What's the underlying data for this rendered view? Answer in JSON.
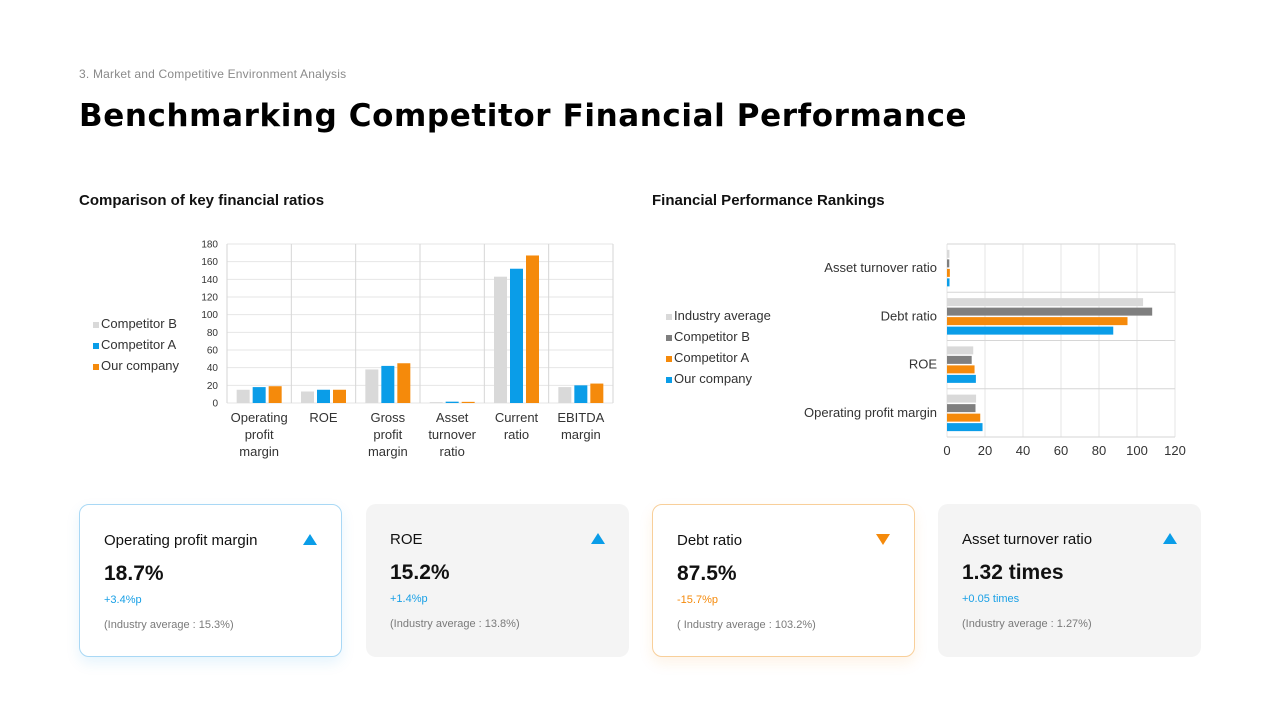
{
  "header": {
    "section": "3. Market and Competitive Environment Analysis",
    "title": "Benchmarking Competitor Financial Performance"
  },
  "colors": {
    "our_company": "#0a9de8",
    "competitor_a": "#f58a0b",
    "competitor_b": "#d9d9d9",
    "competitor_b_dark": "#7f7f7f",
    "industry_average": "#d9d9d9"
  },
  "chart_data": [
    {
      "type": "bar",
      "title": "Comparison of key financial ratios",
      "categories": [
        [
          "Operating",
          "profit",
          "margin"
        ],
        [
          "ROE"
        ],
        [
          "Gross",
          "profit",
          "margin"
        ],
        [
          "Asset",
          "turnover",
          "ratio"
        ],
        [
          "Current",
          "ratio"
        ],
        [
          "EBITDA",
          "margin"
        ]
      ],
      "series": [
        {
          "name": "Competitor B",
          "color": "#d9d9d9",
          "values": [
            15,
            13,
            38,
            1,
            143,
            18
          ]
        },
        {
          "name": "Competitor A",
          "color": "#0a9de8",
          "values": [
            18,
            15,
            42,
            1.5,
            152,
            20
          ]
        },
        {
          "name": "Our company",
          "color": "#f58a0b",
          "values": [
            19,
            15,
            45,
            1.3,
            167,
            22
          ]
        }
      ],
      "ylim": [
        0,
        180
      ],
      "yticks": [
        0,
        20,
        40,
        60,
        80,
        100,
        120,
        140,
        160,
        180
      ],
      "grid": true,
      "legend_position": "left"
    },
    {
      "type": "bar",
      "orientation": "horizontal",
      "title": "Financial Performance Rankings",
      "categories": [
        "Asset turnover ratio",
        "Debt ratio",
        "ROE",
        "Operating profit margin"
      ],
      "series": [
        {
          "name": "Industry average",
          "color": "#d9d9d9",
          "values": [
            1.27,
            103.2,
            13.8,
            15.3
          ]
        },
        {
          "name": "Competitor B",
          "color": "#7f7f7f",
          "values": [
            1.2,
            108,
            13,
            15
          ]
        },
        {
          "name": "Competitor A",
          "color": "#f58a0b",
          "values": [
            1.5,
            95,
            14.5,
            17.5
          ]
        },
        {
          "name": "Our company",
          "color": "#0a9de8",
          "values": [
            1.32,
            87.5,
            15.2,
            18.7
          ]
        }
      ],
      "xlim": [
        0,
        120
      ],
      "xticks": [
        0,
        20,
        40,
        60,
        80,
        100,
        120
      ],
      "grid": true,
      "legend_position": "left"
    }
  ],
  "cards": [
    {
      "title": "Operating profit margin",
      "value": "18.7%",
      "change": "+3.4%p",
      "note": "(Industry average : 15.3%)",
      "trend": "up"
    },
    {
      "title": "ROE",
      "value": "15.2%",
      "change": "+1.4%p",
      "note": "(Industry average : 13.8%)",
      "trend": "up"
    },
    {
      "title": "Debt ratio",
      "value": "87.5%",
      "change": "-15.7%p",
      "note": "( Industry average : 103.2%)",
      "trend": "down"
    },
    {
      "title": "Asset turnover ratio",
      "value": "1.32 times",
      "change": "+0.05 times",
      "note": "(Industry average : 1.27%)",
      "trend": "up"
    }
  ]
}
